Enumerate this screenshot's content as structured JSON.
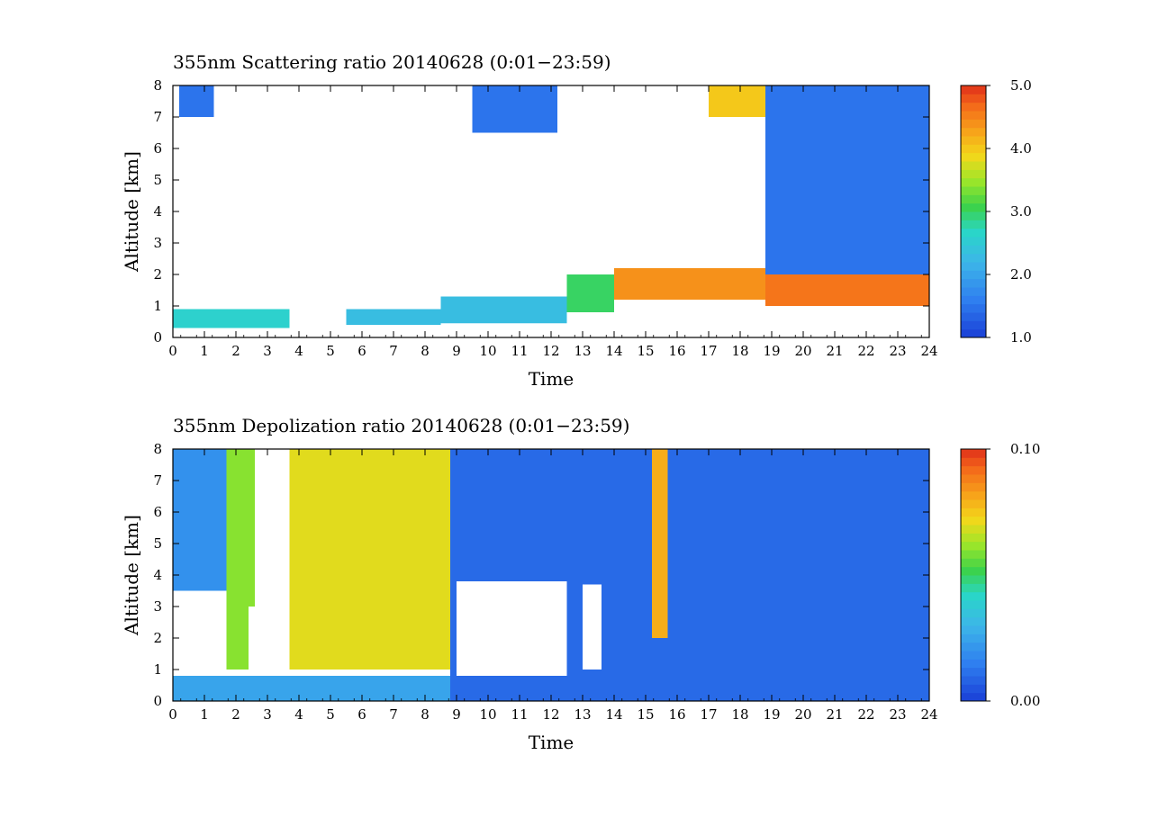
{
  "chart_data": [
    {
      "type": "heatmap",
      "title": "355nm Scattering ratio  20140628 (0:01−23:59)",
      "xlabel": "Time",
      "ylabel": "Altitude [km]",
      "xlim": [
        0,
        24
      ],
      "ylim": [
        0,
        8
      ],
      "x_ticks": [
        "0",
        "1",
        "2",
        "3",
        "4",
        "5",
        "6",
        "7",
        "8",
        "9",
        "10",
        "11",
        "12",
        "13",
        "14",
        "15",
        "16",
        "17",
        "18",
        "19",
        "20",
        "21",
        "22",
        "23",
        "24"
      ],
      "y_ticks": [
        "0",
        "1",
        "2",
        "3",
        "4",
        "5",
        "6",
        "7",
        "8"
      ],
      "colorbar": {
        "min": 1.0,
        "max": 5.0,
        "tick_values": [
          1.0,
          2.0,
          3.0,
          4.0,
          5.0
        ],
        "tick_labels": [
          "1.0",
          "2.0",
          "3.0",
          "4.0",
          "5.0"
        ]
      },
      "features": [
        {
          "t0": 0.0,
          "t1": 3.7,
          "z0": 0.3,
          "z1": 0.9,
          "value": 2.6
        },
        {
          "t0": 5.5,
          "t1": 8.5,
          "z0": 0.4,
          "z1": 0.9,
          "value": 2.3
        },
        {
          "t0": 8.5,
          "t1": 12.5,
          "z0": 0.45,
          "z1": 1.3,
          "value": 2.3
        },
        {
          "t0": 12.5,
          "t1": 14.0,
          "z0": 0.8,
          "z1": 2.0,
          "value": 3.0
        },
        {
          "t0": 14.0,
          "t1": 18.8,
          "z0": 1.2,
          "z1": 2.2,
          "value": 4.4
        },
        {
          "t0": 18.8,
          "t1": 24.0,
          "z0": 1.0,
          "z1": 2.0,
          "value": 4.6
        },
        {
          "t0": 18.8,
          "t1": 24.0,
          "z0": 2.0,
          "z1": 8.0,
          "value": 1.5
        },
        {
          "t0": 9.5,
          "t1": 12.2,
          "z0": 6.5,
          "z1": 8.0,
          "value": 1.5
        },
        {
          "t0": 0.2,
          "t1": 1.3,
          "z0": 7.0,
          "z1": 8.0,
          "value": 1.5
        },
        {
          "t0": 17.0,
          "t1": 18.8,
          "z0": 7.0,
          "z1": 8.0,
          "value": 4.0
        }
      ]
    },
    {
      "type": "heatmap",
      "title": "355nm Depolization ratio  20140628 (0:01−23:59)",
      "xlabel": "Time",
      "ylabel": "Altitude [km]",
      "xlim": [
        0,
        24
      ],
      "ylim": [
        0,
        8
      ],
      "x_ticks": [
        "0",
        "1",
        "2",
        "3",
        "4",
        "5",
        "6",
        "7",
        "8",
        "9",
        "10",
        "11",
        "12",
        "13",
        "14",
        "15",
        "16",
        "17",
        "18",
        "19",
        "20",
        "21",
        "22",
        "23",
        "24"
      ],
      "y_ticks": [
        "0",
        "1",
        "2",
        "3",
        "4",
        "5",
        "6",
        "7",
        "8"
      ],
      "colorbar": {
        "min": 0.0,
        "max": 0.1,
        "tick_values": [
          0.0,
          0.1
        ],
        "tick_labels": [
          "0.00",
          "0.10"
        ]
      },
      "features": [
        {
          "t0": 0.0,
          "t1": 9.0,
          "z0": 0.0,
          "z1": 0.8,
          "value": 0.025
        },
        {
          "t0": 0.0,
          "t1": 1.7,
          "z0": 3.5,
          "z1": 8.0,
          "value": 0.02
        },
        {
          "t0": 1.7,
          "t1": 2.6,
          "z0": 1.0,
          "z1": 8.0,
          "value": 0.06
        },
        {
          "t0": 3.7,
          "t1": 8.8,
          "z0": 1.0,
          "z1": 8.0,
          "value": 0.07
        },
        {
          "t0": 0.1,
          "t1": 1.5,
          "z0": 0.9,
          "z1": 3.4,
          "value": null
        },
        {
          "t0": 2.4,
          "t1": 3.5,
          "z0": 1.0,
          "z1": 3.0,
          "value": null
        },
        {
          "t0": 8.8,
          "t1": 24.0,
          "z0": 0.0,
          "z1": 8.0,
          "value": 0.01
        },
        {
          "t0": 9.0,
          "t1": 12.5,
          "z0": 0.8,
          "z1": 3.8,
          "value": null
        },
        {
          "t0": 13.0,
          "t1": 13.6,
          "z0": 1.0,
          "z1": 3.7,
          "value": null
        },
        {
          "t0": 15.2,
          "t1": 15.7,
          "z0": 2.0,
          "z1": 8.0,
          "value": 0.08
        }
      ]
    }
  ]
}
